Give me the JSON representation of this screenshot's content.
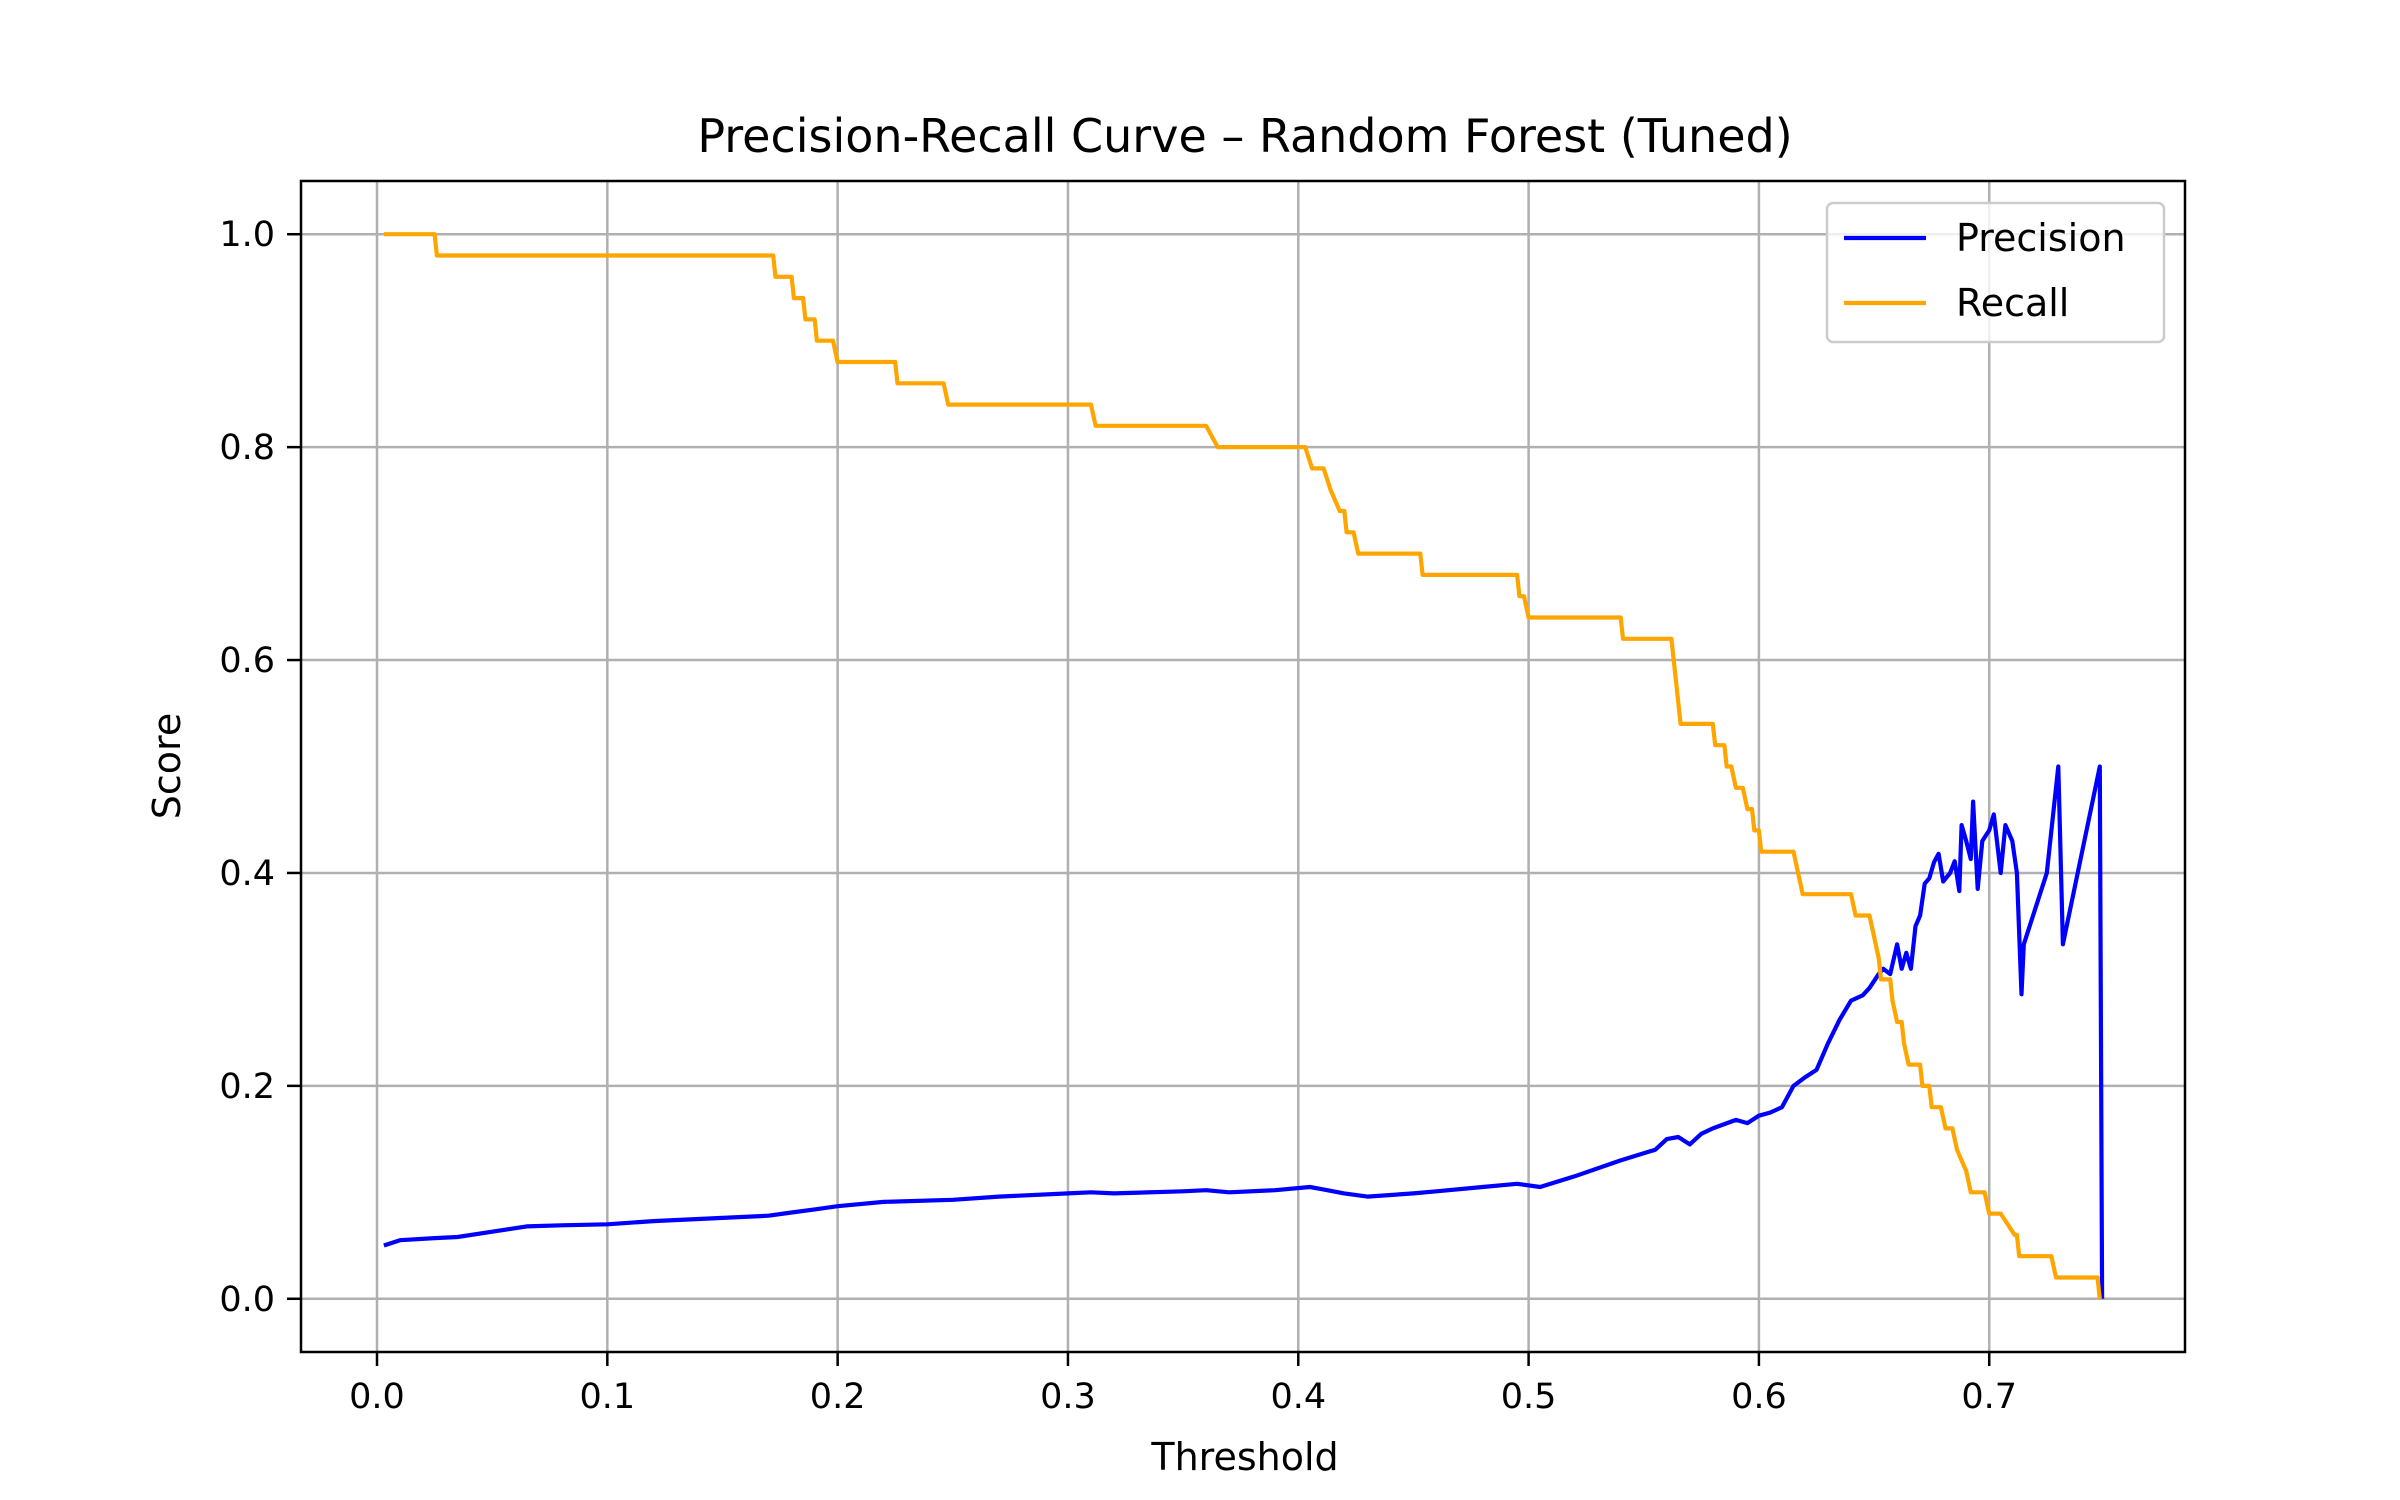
{
  "chart_data": {
    "type": "line",
    "title": "Precision-Recall Curve – Random Forest (Tuned)",
    "xlabel": "Threshold",
    "ylabel": "Score",
    "xlim": [
      -0.033,
      0.785
    ],
    "ylim": [
      -0.05,
      1.05
    ],
    "xticks": [
      0.0,
      0.1,
      0.2,
      0.3,
      0.4,
      0.5,
      0.6,
      0.7
    ],
    "xtick_labels": [
      "0.0",
      "0.1",
      "0.2",
      "0.3",
      "0.4",
      "0.5",
      "0.6",
      "0.7"
    ],
    "yticks": [
      0.0,
      0.2,
      0.4,
      0.6,
      0.8,
      1.0
    ],
    "ytick_labels": [
      "0.0",
      "0.2",
      "0.4",
      "0.6",
      "0.8",
      "1.0"
    ],
    "grid": true,
    "legend_position": "top-right",
    "series": [
      {
        "name": "Precision",
        "color": "#0000ff",
        "points": [
          [
            0.003,
            0.05
          ],
          [
            0.01,
            0.055
          ],
          [
            0.025,
            0.057
          ],
          [
            0.035,
            0.058
          ],
          [
            0.05,
            0.063
          ],
          [
            0.065,
            0.068
          ],
          [
            0.08,
            0.069
          ],
          [
            0.1,
            0.07
          ],
          [
            0.12,
            0.073
          ],
          [
            0.15,
            0.076
          ],
          [
            0.17,
            0.078
          ],
          [
            0.18,
            0.081
          ],
          [
            0.19,
            0.084
          ],
          [
            0.2,
            0.087
          ],
          [
            0.22,
            0.091
          ],
          [
            0.25,
            0.093
          ],
          [
            0.27,
            0.096
          ],
          [
            0.3,
            0.099
          ],
          [
            0.31,
            0.1
          ],
          [
            0.32,
            0.099
          ],
          [
            0.35,
            0.101
          ],
          [
            0.36,
            0.102
          ],
          [
            0.37,
            0.1
          ],
          [
            0.39,
            0.102
          ],
          [
            0.405,
            0.105
          ],
          [
            0.41,
            0.103
          ],
          [
            0.42,
            0.099
          ],
          [
            0.43,
            0.096
          ],
          [
            0.45,
            0.099
          ],
          [
            0.46,
            0.101
          ],
          [
            0.48,
            0.105
          ],
          [
            0.495,
            0.108
          ],
          [
            0.505,
            0.105
          ],
          [
            0.52,
            0.115
          ],
          [
            0.54,
            0.13
          ],
          [
            0.555,
            0.14
          ],
          [
            0.56,
            0.15
          ],
          [
            0.565,
            0.152
          ],
          [
            0.57,
            0.145
          ],
          [
            0.575,
            0.155
          ],
          [
            0.58,
            0.16
          ],
          [
            0.59,
            0.168
          ],
          [
            0.595,
            0.165
          ],
          [
            0.6,
            0.172
          ],
          [
            0.605,
            0.175
          ],
          [
            0.61,
            0.18
          ],
          [
            0.615,
            0.2
          ],
          [
            0.62,
            0.208
          ],
          [
            0.625,
            0.215
          ],
          [
            0.63,
            0.24
          ],
          [
            0.635,
            0.262
          ],
          [
            0.64,
            0.28
          ],
          [
            0.645,
            0.285
          ],
          [
            0.648,
            0.292
          ],
          [
            0.652,
            0.305
          ],
          [
            0.654,
            0.31
          ],
          [
            0.657,
            0.305
          ],
          [
            0.66,
            0.333
          ],
          [
            0.662,
            0.31
          ],
          [
            0.664,
            0.325
          ],
          [
            0.666,
            0.31
          ],
          [
            0.668,
            0.35
          ],
          [
            0.67,
            0.36
          ],
          [
            0.672,
            0.39
          ],
          [
            0.674,
            0.395
          ],
          [
            0.676,
            0.41
          ],
          [
            0.678,
            0.418
          ],
          [
            0.68,
            0.392
          ],
          [
            0.683,
            0.4
          ],
          [
            0.685,
            0.411
          ],
          [
            0.687,
            0.383
          ],
          [
            0.688,
            0.445
          ],
          [
            0.69,
            0.43
          ],
          [
            0.692,
            0.413
          ],
          [
            0.693,
            0.467
          ],
          [
            0.695,
            0.385
          ],
          [
            0.697,
            0.43
          ],
          [
            0.7,
            0.44
          ],
          [
            0.702,
            0.455
          ],
          [
            0.705,
            0.4
          ],
          [
            0.707,
            0.445
          ],
          [
            0.71,
            0.43
          ],
          [
            0.712,
            0.4
          ],
          [
            0.714,
            0.286
          ],
          [
            0.715,
            0.333
          ],
          [
            0.725,
            0.4
          ],
          [
            0.73,
            0.5
          ],
          [
            0.732,
            0.333
          ],
          [
            0.748,
            0.5
          ],
          [
            0.749,
            0.0
          ]
        ]
      },
      {
        "name": "Recall",
        "color": "#ffa500",
        "points": [
          [
            0.003,
            1.0
          ],
          [
            0.025,
            1.0
          ],
          [
            0.026,
            0.98
          ],
          [
            0.172,
            0.98
          ],
          [
            0.173,
            0.96
          ],
          [
            0.18,
            0.96
          ],
          [
            0.181,
            0.94
          ],
          [
            0.185,
            0.94
          ],
          [
            0.186,
            0.92
          ],
          [
            0.19,
            0.92
          ],
          [
            0.191,
            0.9
          ],
          [
            0.198,
            0.9
          ],
          [
            0.2,
            0.88
          ],
          [
            0.225,
            0.88
          ],
          [
            0.226,
            0.86
          ],
          [
            0.246,
            0.86
          ],
          [
            0.248,
            0.84
          ],
          [
            0.31,
            0.84
          ],
          [
            0.312,
            0.82
          ],
          [
            0.36,
            0.82
          ],
          [
            0.365,
            0.8
          ],
          [
            0.403,
            0.8
          ],
          [
            0.406,
            0.78
          ],
          [
            0.411,
            0.78
          ],
          [
            0.414,
            0.76
          ],
          [
            0.418,
            0.74
          ],
          [
            0.42,
            0.74
          ],
          [
            0.421,
            0.72
          ],
          [
            0.424,
            0.72
          ],
          [
            0.426,
            0.7
          ],
          [
            0.453,
            0.7
          ],
          [
            0.454,
            0.68
          ],
          [
            0.495,
            0.68
          ],
          [
            0.496,
            0.66
          ],
          [
            0.498,
            0.66
          ],
          [
            0.5,
            0.64
          ],
          [
            0.54,
            0.64
          ],
          [
            0.541,
            0.62
          ],
          [
            0.562,
            0.62
          ],
          [
            0.563,
            0.6
          ],
          [
            0.564,
            0.58
          ],
          [
            0.565,
            0.56
          ],
          [
            0.566,
            0.54
          ],
          [
            0.58,
            0.54
          ],
          [
            0.581,
            0.52
          ],
          [
            0.585,
            0.52
          ],
          [
            0.586,
            0.5
          ],
          [
            0.588,
            0.5
          ],
          [
            0.59,
            0.48
          ],
          [
            0.593,
            0.48
          ],
          [
            0.595,
            0.46
          ],
          [
            0.597,
            0.46
          ],
          [
            0.598,
            0.44
          ],
          [
            0.6,
            0.44
          ],
          [
            0.601,
            0.42
          ],
          [
            0.615,
            0.42
          ],
          [
            0.619,
            0.38
          ],
          [
            0.64,
            0.38
          ],
          [
            0.642,
            0.36
          ],
          [
            0.648,
            0.36
          ],
          [
            0.65,
            0.34
          ],
          [
            0.652,
            0.32
          ],
          [
            0.653,
            0.3
          ],
          [
            0.657,
            0.3
          ],
          [
            0.658,
            0.28
          ],
          [
            0.66,
            0.26
          ],
          [
            0.662,
            0.26
          ],
          [
            0.663,
            0.24
          ],
          [
            0.665,
            0.22
          ],
          [
            0.67,
            0.22
          ],
          [
            0.671,
            0.2
          ],
          [
            0.674,
            0.2
          ],
          [
            0.675,
            0.18
          ],
          [
            0.679,
            0.18
          ],
          [
            0.681,
            0.16
          ],
          [
            0.684,
            0.16
          ],
          [
            0.686,
            0.14
          ],
          [
            0.688,
            0.13
          ],
          [
            0.69,
            0.12
          ],
          [
            0.692,
            0.1
          ],
          [
            0.698,
            0.1
          ],
          [
            0.7,
            0.08
          ],
          [
            0.705,
            0.08
          ],
          [
            0.708,
            0.07
          ],
          [
            0.711,
            0.06
          ],
          [
            0.712,
            0.06
          ],
          [
            0.713,
            0.04
          ],
          [
            0.727,
            0.04
          ],
          [
            0.729,
            0.02
          ],
          [
            0.747,
            0.02
          ],
          [
            0.748,
            0.0
          ]
        ]
      }
    ]
  }
}
